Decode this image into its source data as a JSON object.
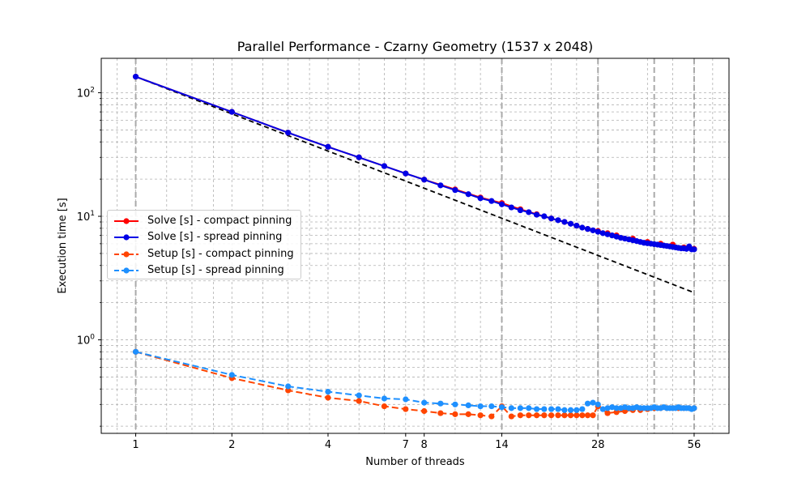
{
  "chart_data": {
    "type": "line",
    "title": "Parallel Performance - Czarny Geometry (1537 x 2048)",
    "xlabel": "Number of threads",
    "ylabel": "Execution time [s]",
    "x_scale": "log2",
    "y_scale": "log10",
    "xlim": [
      0.78,
      72
    ],
    "ylim": [
      0.175,
      190
    ],
    "x_ticks": [
      1,
      2,
      4,
      7,
      8,
      14,
      28,
      56
    ],
    "x_tick_labels": [
      "1",
      "2",
      "4",
      "7",
      "8",
      "14",
      "28",
      "56"
    ],
    "y_ticks": [
      1,
      10,
      100
    ],
    "y_tick_labels": [
      "10^0",
      "10^1",
      "10^2"
    ],
    "grid": true,
    "vertical_reference_lines": [
      1,
      14,
      28,
      42,
      56
    ],
    "legend_position": "center-left",
    "ideal_scaling": {
      "style": "black dashed",
      "x": [
        1,
        56
      ],
      "y": [
        135,
        2.41
      ]
    },
    "series": [
      {
        "name": "Solve [s] - compact pinning",
        "color": "#ff0000",
        "style": "solid",
        "x": [
          1,
          2,
          3,
          4,
          5,
          6,
          7,
          8,
          10,
          12,
          14,
          16,
          18,
          20,
          22,
          24,
          26,
          28,
          30,
          32,
          36,
          40,
          44,
          48,
          52,
          56
        ],
        "y": [
          135,
          70,
          47.5,
          36.5,
          30,
          25.5,
          22.2,
          19.8,
          16.5,
          14.2,
          12.8,
          11.4,
          10.4,
          9.6,
          9.0,
          8.4,
          7.9,
          7.6,
          7.3,
          7.0,
          6.6,
          6.2,
          6.0,
          5.9,
          5.6,
          5.45
        ]
      },
      {
        "name": "Solve [s] - spread pinning",
        "color": "#0000e6",
        "style": "solid",
        "x": [
          1,
          2,
          3,
          4,
          5,
          6,
          7,
          8,
          9,
          10,
          11,
          12,
          13,
          14,
          15,
          16,
          17,
          18,
          19,
          20,
          21,
          22,
          23,
          24,
          25,
          26,
          27,
          28,
          29,
          30,
          31,
          32,
          33,
          34,
          35,
          36,
          37,
          38,
          39,
          40,
          41,
          42,
          43,
          44,
          45,
          46,
          47,
          48,
          49,
          50,
          51,
          52,
          53,
          54,
          55,
          56
        ],
        "y": [
          135,
          70,
          47.5,
          36.5,
          30,
          25.5,
          22.2,
          19.8,
          17.8,
          16.3,
          15.1,
          14.0,
          13.3,
          12.5,
          11.8,
          11.2,
          10.8,
          10.3,
          10.0,
          9.6,
          9.3,
          9.0,
          8.7,
          8.4,
          8.1,
          7.9,
          7.7,
          7.5,
          7.3,
          7.15,
          7.0,
          6.85,
          6.7,
          6.6,
          6.5,
          6.4,
          6.3,
          6.2,
          6.1,
          6.05,
          6.0,
          5.95,
          5.9,
          5.85,
          5.8,
          5.75,
          5.7,
          5.65,
          5.6,
          5.55,
          5.5,
          5.5,
          5.45,
          5.7,
          5.4,
          5.4
        ]
      },
      {
        "name": "Setup [s] - compact pinning",
        "color": "#ff4500",
        "style": "dashed",
        "x": [
          1,
          2,
          3,
          4,
          5,
          6,
          7,
          8,
          9,
          10,
          11,
          12,
          13,
          14,
          15,
          16,
          17,
          18,
          19,
          20,
          21,
          22,
          23,
          24,
          25,
          26,
          27,
          28,
          30,
          32,
          34,
          36,
          38,
          40,
          42,
          44,
          46,
          48,
          50,
          52,
          54,
          56
        ],
        "y": [
          0.8,
          0.49,
          0.39,
          0.34,
          0.32,
          0.29,
          0.275,
          0.265,
          0.255,
          0.25,
          0.25,
          0.245,
          0.24,
          0.29,
          0.24,
          0.245,
          0.245,
          0.245,
          0.245,
          0.245,
          0.245,
          0.245,
          0.245,
          0.245,
          0.245,
          0.245,
          0.245,
          0.29,
          0.255,
          0.26,
          0.265,
          0.27,
          0.27,
          0.275,
          0.28,
          0.28,
          0.28,
          0.28,
          0.28,
          0.28,
          0.28,
          0.28
        ]
      },
      {
        "name": "Setup [s] - spread pinning",
        "color": "#1e90ff",
        "style": "dashed",
        "x": [
          1,
          2,
          3,
          4,
          5,
          6,
          7,
          8,
          9,
          10,
          11,
          12,
          13,
          14,
          15,
          16,
          17,
          18,
          19,
          20,
          21,
          22,
          23,
          24,
          25,
          26,
          27,
          28,
          29,
          30,
          31,
          32,
          33,
          34,
          35,
          36,
          37,
          38,
          39,
          40,
          41,
          42,
          43,
          44,
          45,
          46,
          47,
          48,
          49,
          50,
          51,
          52,
          53,
          54,
          55,
          56
        ],
        "y": [
          0.8,
          0.52,
          0.42,
          0.38,
          0.355,
          0.335,
          0.33,
          0.31,
          0.305,
          0.3,
          0.295,
          0.29,
          0.29,
          0.285,
          0.28,
          0.28,
          0.28,
          0.275,
          0.275,
          0.275,
          0.275,
          0.27,
          0.27,
          0.27,
          0.275,
          0.305,
          0.31,
          0.3,
          0.275,
          0.28,
          0.285,
          0.28,
          0.28,
          0.285,
          0.28,
          0.28,
          0.285,
          0.28,
          0.28,
          0.28,
          0.28,
          0.285,
          0.28,
          0.28,
          0.285,
          0.28,
          0.28,
          0.28,
          0.28,
          0.285,
          0.28,
          0.28,
          0.28,
          0.28,
          0.275,
          0.28
        ]
      }
    ]
  }
}
